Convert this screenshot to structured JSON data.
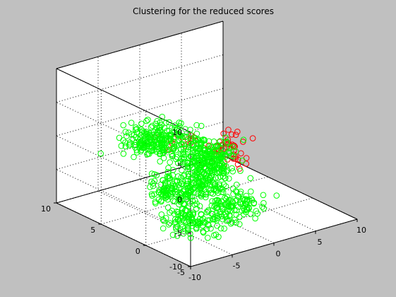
{
  "figure": {
    "background": "#c0c0c0",
    "axes_background": "#ffffff"
  },
  "chart_data": {
    "type": "scatter",
    "projection": "3d",
    "title": "Clustering for the reduced scores",
    "xlabel": "",
    "ylabel": "",
    "zlabel": "",
    "xlim": [
      -10,
      10
    ],
    "ylim": [
      -5,
      10
    ],
    "zlim": [
      -10,
      10
    ],
    "x_ticks": [
      -10,
      -5,
      0,
      5,
      10
    ],
    "y_ticks": [
      -5,
      0,
      5,
      10
    ],
    "z_ticks": [
      -10,
      -5,
      0,
      5,
      10
    ],
    "grid": true,
    "grid_style": "dotted",
    "box": true,
    "marker": "open-circle",
    "series": [
      {
        "cluster": 1,
        "color": "#ff0000",
        "count": 60,
        "spread": [
          1.6,
          1.3,
          1.2
        ],
        "anchor_points": [
          [
            -2.7,
            1.5,
            1.3
          ],
          [
            -0.3,
            0.6,
            0.5
          ],
          [
            1.3,
            1.3,
            0.3
          ],
          [
            0.3,
            -0.5,
            -0.7
          ],
          [
            -3.6,
            3.1,
            1.4
          ],
          [
            0.6,
            0.2,
            2.5
          ],
          [
            -1.3,
            0.2,
            -0.3
          ],
          [
            1.3,
            0.5,
            -1.0
          ]
        ]
      },
      {
        "cluster": 2,
        "color": "#00ff00",
        "count": 950,
        "spread": [
          2.2,
          1.9,
          1.8
        ],
        "anchor_points": [
          [
            -6.5,
            3.0,
            2.2
          ],
          [
            -5.2,
            1.5,
            -4.5
          ],
          [
            -4.6,
            2.5,
            2.7
          ],
          [
            -4.5,
            0.0,
            -8.2
          ],
          [
            -1.5,
            -2.0,
            -5.8
          ],
          [
            -1.9,
            0.5,
            0.8
          ],
          [
            -3.0,
            0.0,
            -3.5
          ],
          [
            -2.4,
            0.5,
            -1.2
          ]
        ]
      }
    ]
  }
}
